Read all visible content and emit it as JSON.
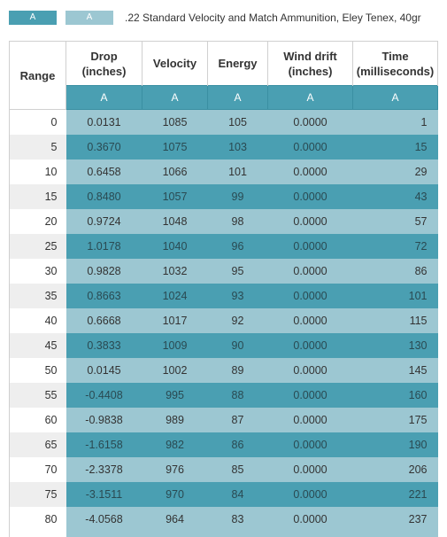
{
  "legend": {
    "swatch1_label": "A",
    "swatch2_label": "A",
    "title": ".22 Standard Velocity and Match Ammunition, Eley Tenex, 40gr"
  },
  "table": {
    "headers": {
      "range": "Range",
      "drop_line1": "Drop",
      "drop_line2": "(inches)",
      "velocity": "Velocity",
      "energy": "Energy",
      "wind_line1": "Wind drift",
      "wind_line2": "(inches)",
      "time_line1": "Time",
      "time_line2": "(milliseconds)"
    },
    "sub_labels": [
      "A",
      "A",
      "A",
      "A",
      "A"
    ],
    "rows": [
      {
        "range": "0",
        "drop": "0.0131",
        "velocity": "1085",
        "energy": "105",
        "wind": "0.0000",
        "time": "1"
      },
      {
        "range": "5",
        "drop": "0.3670",
        "velocity": "1075",
        "energy": "103",
        "wind": "0.0000",
        "time": "15"
      },
      {
        "range": "10",
        "drop": "0.6458",
        "velocity": "1066",
        "energy": "101",
        "wind": "0.0000",
        "time": "29"
      },
      {
        "range": "15",
        "drop": "0.8480",
        "velocity": "1057",
        "energy": "99",
        "wind": "0.0000",
        "time": "43"
      },
      {
        "range": "20",
        "drop": "0.9724",
        "velocity": "1048",
        "energy": "98",
        "wind": "0.0000",
        "time": "57"
      },
      {
        "range": "25",
        "drop": "1.0178",
        "velocity": "1040",
        "energy": "96",
        "wind": "0.0000",
        "time": "72"
      },
      {
        "range": "30",
        "drop": "0.9828",
        "velocity": "1032",
        "energy": "95",
        "wind": "0.0000",
        "time": "86"
      },
      {
        "range": "35",
        "drop": "0.8663",
        "velocity": "1024",
        "energy": "93",
        "wind": "0.0000",
        "time": "101"
      },
      {
        "range": "40",
        "drop": "0.6668",
        "velocity": "1017",
        "energy": "92",
        "wind": "0.0000",
        "time": "115"
      },
      {
        "range": "45",
        "drop": "0.3833",
        "velocity": "1009",
        "energy": "90",
        "wind": "0.0000",
        "time": "130"
      },
      {
        "range": "50",
        "drop": "0.0145",
        "velocity": "1002",
        "energy": "89",
        "wind": "0.0000",
        "time": "145"
      },
      {
        "range": "55",
        "drop": "-0.4408",
        "velocity": "995",
        "energy": "88",
        "wind": "0.0000",
        "time": "160"
      },
      {
        "range": "60",
        "drop": "-0.9838",
        "velocity": "989",
        "energy": "87",
        "wind": "0.0000",
        "time": "175"
      },
      {
        "range": "65",
        "drop": "-1.6158",
        "velocity": "982",
        "energy": "86",
        "wind": "0.0000",
        "time": "190"
      },
      {
        "range": "70",
        "drop": "-2.3378",
        "velocity": "976",
        "energy": "85",
        "wind": "0.0000",
        "time": "206"
      },
      {
        "range": "75",
        "drop": "-3.1511",
        "velocity": "970",
        "energy": "84",
        "wind": "0.0000",
        "time": "221"
      },
      {
        "range": "80",
        "drop": "-4.0568",
        "velocity": "964",
        "energy": "83",
        "wind": "0.0000",
        "time": "237"
      }
    ]
  },
  "colors": {
    "dark_teal": "#4a9fb2",
    "light_teal": "#9cc7d2",
    "stripe_gray": "#eeeeee"
  }
}
